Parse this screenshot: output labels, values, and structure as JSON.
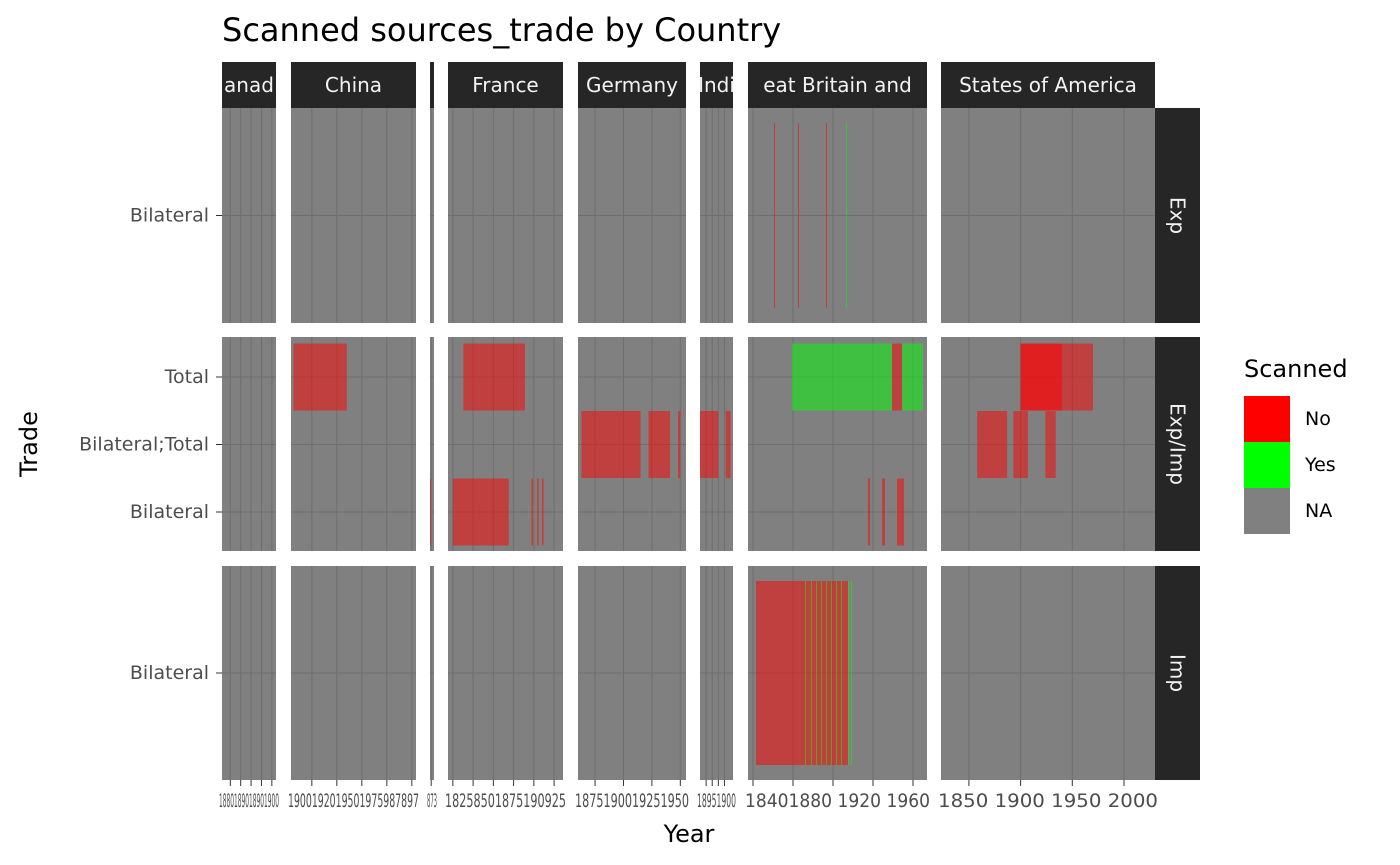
{
  "chart_data": {
    "type": "heatmap",
    "title": "Scanned sources_trade by Country",
    "xlabel": "Year",
    "ylabel": "Trade",
    "legend": {
      "title": "Scanned",
      "position": "right",
      "entries": [
        {
          "label": "No",
          "color": "#ff0000"
        },
        {
          "label": "Yes",
          "color": "#00ff00"
        },
        {
          "label": "NA",
          "color": "#808080"
        }
      ]
    },
    "colors": {
      "panel": "#808080",
      "strip": "#262626",
      "no": "#ff0000",
      "yes": "#00ff00",
      "tile_opacity": 0.5
    },
    "col_panels": [
      {
        "label": "Canada",
        "strip_text": "anad",
        "xlim": [
          1876,
          1902
        ],
        "ticks": [
          1880,
          1885,
          1890,
          1895,
          1900
        ],
        "tick_text": "1880189018901900"
      },
      {
        "label": "China",
        "strip_text": "China",
        "xlim": [
          1865,
          2015
        ],
        "ticks": [
          1890,
          1920,
          1950,
          1980,
          2010
        ],
        "tick_text": "1900192019501975987897"
      },
      {
        "label": "",
        "strip_text": "",
        "xlim": [
          1870,
          1880
        ],
        "ticks": [
          1873
        ],
        "tick_text": "873"
      },
      {
        "label": "France",
        "strip_text": "France",
        "xlim": [
          1794,
          1936
        ],
        "ticks": [
          1800,
          1825,
          1850,
          1875,
          1900,
          1925
        ],
        "tick_text": "18258501875190925"
      },
      {
        "label": "Germany",
        "strip_text": "Germany",
        "xlim": [
          1860,
          1955
        ],
        "ticks": [
          1875,
          1900,
          1925,
          1950
        ],
        "tick_text": "1875190019251950"
      },
      {
        "label": "India",
        "strip_text": "Indi",
        "xlim": [
          1880,
          1907
        ],
        "ticks": [
          1885,
          1890,
          1895,
          1900
        ],
        "tick_text": "18951900"
      },
      {
        "label": "Great Britain and Ireland",
        "strip_text": "eat Britain and",
        "xlim": [
          1795,
          1974
        ],
        "ticks": [
          1800,
          1840,
          1880,
          1920,
          1960
        ],
        "tick_text": "18401880 1920 1960"
      },
      {
        "label": "United States of America",
        "strip_text": "States of America",
        "xlim": [
          1823,
          2030
        ],
        "ticks": [
          1850,
          1900,
          1950,
          2000
        ],
        "tick_text": "1850 1900 1950 2000"
      }
    ],
    "row_panels": [
      {
        "label": "Exp",
        "categories": [
          "Bilateral"
        ]
      },
      {
        "label": "Exp/Imp",
        "categories": [
          "Bilateral",
          "Bilateral;Total",
          "Total"
        ]
      },
      {
        "label": "Imp",
        "categories": [
          "Bilateral"
        ]
      }
    ],
    "tiles": [
      {
        "country": "Great Britain and Ireland",
        "flow": "Exp",
        "trade": "Bilateral",
        "start": 1821,
        "end": 1822,
        "scanned": "No"
      },
      {
        "country": "Great Britain and Ireland",
        "flow": "Exp",
        "trade": "Bilateral",
        "start": 1845,
        "end": 1846,
        "scanned": "No"
      },
      {
        "country": "Great Britain and Ireland",
        "flow": "Exp",
        "trade": "Bilateral",
        "start": 1873,
        "end": 1874,
        "scanned": "No"
      },
      {
        "country": "Great Britain and Ireland",
        "flow": "Exp",
        "trade": "Bilateral",
        "start": 1893,
        "end": 1894,
        "scanned": "Yes"
      },
      {
        "country": "China",
        "flow": "Exp/Imp",
        "trade": "Total",
        "start": 1868,
        "end": 1932,
        "scanned": "No"
      },
      {
        "country": "France",
        "flow": "Exp/Imp",
        "trade": "Total",
        "start": 1813,
        "end": 1882,
        "scanned": "No"
      },
      {
        "country": "France",
        "flow": "Exp/Imp",
        "trade": "Total",
        "start": 1882,
        "end": 1886,
        "scanned": "No"
      },
      {
        "country": "France",
        "flow": "Exp/Imp",
        "trade": "Total",
        "start": 1886,
        "end": 1889,
        "scanned": "No"
      },
      {
        "country": "Great Britain and Ireland",
        "flow": "Exp/Imp",
        "trade": "Total",
        "start": 1839,
        "end": 1898,
        "scanned": "Yes"
      },
      {
        "country": "Great Britain and Ireland",
        "flow": "Exp/Imp",
        "trade": "Total",
        "start": 1898,
        "end": 1939,
        "scanned": "Yes"
      },
      {
        "country": "Great Britain and Ireland",
        "flow": "Exp/Imp",
        "trade": "Total",
        "start": 1939,
        "end": 1949,
        "scanned": "No"
      },
      {
        "country": "Great Britain and Ireland",
        "flow": "Exp/Imp",
        "trade": "Total",
        "start": 1949,
        "end": 1970,
        "scanned": "Yes"
      },
      {
        "country": "United States of America",
        "flow": "Exp/Imp",
        "trade": "Total",
        "start": 1900,
        "end": 1940,
        "scanned": "No"
      },
      {
        "country": "United States of America",
        "flow": "Exp/Imp",
        "trade": "Total",
        "start": 1940,
        "end": 1970,
        "scanned": "No"
      },
      {
        "country": "United States of America",
        "flow": "Exp/Imp",
        "trade": "Total",
        "start": 1900,
        "end": 1940,
        "scanned": "No"
      },
      {
        "country": "Germany",
        "flow": "Exp/Imp",
        "trade": "Bilateral;Total",
        "start": 1863,
        "end": 1915,
        "scanned": "No"
      },
      {
        "country": "Germany",
        "flow": "Exp/Imp",
        "trade": "Bilateral;Total",
        "start": 1922,
        "end": 1941,
        "scanned": "No"
      },
      {
        "country": "Germany",
        "flow": "Exp/Imp",
        "trade": "Bilateral;Total",
        "start": 1948,
        "end": 1950,
        "scanned": "No"
      },
      {
        "country": "India",
        "flow": "Exp/Imp",
        "trade": "Bilateral;Total",
        "start": 1880,
        "end": 1895,
        "scanned": "No"
      },
      {
        "country": "India",
        "flow": "Exp/Imp",
        "trade": "Bilateral;Total",
        "start": 1901,
        "end": 1905,
        "scanned": "No"
      },
      {
        "country": "United States of America",
        "flow": "Exp/Imp",
        "trade": "Bilateral;Total",
        "start": 1858,
        "end": 1887,
        "scanned": "No"
      },
      {
        "country": "United States of America",
        "flow": "Exp/Imp",
        "trade": "Bilateral;Total",
        "start": 1893,
        "end": 1903,
        "scanned": "No"
      },
      {
        "country": "United States of America",
        "flow": "Exp/Imp",
        "trade": "Bilateral;Total",
        "start": 1903,
        "end": 1907,
        "scanned": "No"
      },
      {
        "country": "United States of America",
        "flow": "Exp/Imp",
        "trade": "Bilateral;Total",
        "start": 1924,
        "end": 1934,
        "scanned": "No"
      },
      {
        "country": "",
        "flow": "Exp/Imp",
        "trade": "Bilateral",
        "start": 1870,
        "end": 1872,
        "scanned": "No"
      },
      {
        "country": "France",
        "flow": "Exp/Imp",
        "trade": "Bilateral",
        "start": 1800,
        "end": 1869,
        "scanned": "No"
      },
      {
        "country": "France",
        "flow": "Exp/Imp",
        "trade": "Bilateral",
        "start": 1897,
        "end": 1899,
        "scanned": "No"
      },
      {
        "country": "France",
        "flow": "Exp/Imp",
        "trade": "Bilateral",
        "start": 1904,
        "end": 1906,
        "scanned": "No"
      },
      {
        "country": "France",
        "flow": "Exp/Imp",
        "trade": "Bilateral",
        "start": 1910,
        "end": 1912,
        "scanned": "No"
      },
      {
        "country": "Great Britain and Ireland",
        "flow": "Exp/Imp",
        "trade": "Bilateral",
        "start": 1915,
        "end": 1917,
        "scanned": "No"
      },
      {
        "country": "Great Britain and Ireland",
        "flow": "Exp/Imp",
        "trade": "Bilateral",
        "start": 1929,
        "end": 1932,
        "scanned": "No"
      },
      {
        "country": "Great Britain and Ireland",
        "flow": "Exp/Imp",
        "trade": "Bilateral",
        "start": 1944,
        "end": 1951,
        "scanned": "No"
      },
      {
        "country": "Great Britain and Ireland",
        "flow": "Imp",
        "trade": "Bilateral",
        "start": 1803,
        "end": 1850,
        "scanned": "No"
      },
      {
        "country": "Great Britain and Ireland",
        "flow": "Imp",
        "trade": "Bilateral",
        "start": 1850,
        "end": 1895,
        "scanned": "No"
      },
      {
        "country": "Great Britain and Ireland",
        "flow": "Imp",
        "trade": "Bilateral",
        "start": 1852,
        "end": 1853,
        "scanned": "Yes"
      },
      {
        "country": "Great Britain and Ireland",
        "flow": "Imp",
        "trade": "Bilateral",
        "start": 1858,
        "end": 1859,
        "scanned": "Yes"
      },
      {
        "country": "Great Britain and Ireland",
        "flow": "Imp",
        "trade": "Bilateral",
        "start": 1863,
        "end": 1864,
        "scanned": "Yes"
      },
      {
        "country": "Great Britain and Ireland",
        "flow": "Imp",
        "trade": "Bilateral",
        "start": 1868,
        "end": 1869,
        "scanned": "Yes"
      },
      {
        "country": "Great Britain and Ireland",
        "flow": "Imp",
        "trade": "Bilateral",
        "start": 1873,
        "end": 1874,
        "scanned": "Yes"
      },
      {
        "country": "Great Britain and Ireland",
        "flow": "Imp",
        "trade": "Bilateral",
        "start": 1878,
        "end": 1879,
        "scanned": "Yes"
      },
      {
        "country": "Great Britain and Ireland",
        "flow": "Imp",
        "trade": "Bilateral",
        "start": 1883,
        "end": 1884,
        "scanned": "Yes"
      },
      {
        "country": "Great Britain and Ireland",
        "flow": "Imp",
        "trade": "Bilateral",
        "start": 1888,
        "end": 1889,
        "scanned": "Yes"
      },
      {
        "country": "Great Britain and Ireland",
        "flow": "Imp",
        "trade": "Bilateral",
        "start": 1895,
        "end": 1896,
        "scanned": "Yes"
      },
      {
        "country": "Great Britain and Ireland",
        "flow": "Imp",
        "trade": "Bilateral",
        "start": 1898,
        "end": 1899,
        "scanned": "Yes"
      }
    ]
  }
}
